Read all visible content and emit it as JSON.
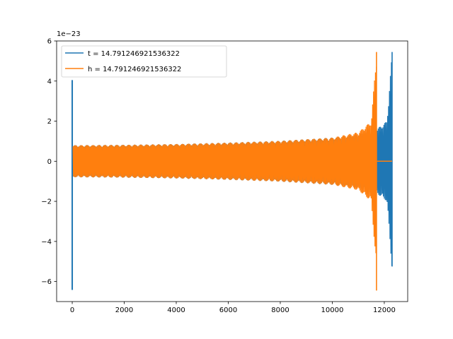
{
  "chart_data": {
    "type": "line",
    "offset_label": "1e−23",
    "x_ticks": [
      0,
      2000,
      4000,
      6000,
      8000,
      10000,
      12000
    ],
    "x_tick_labels": [
      "0",
      "2000",
      "4000",
      "6000",
      "8000",
      "10000",
      "12000"
    ],
    "y_ticks": [
      -6,
      -4,
      -2,
      0,
      2,
      4,
      6
    ],
    "y_tick_labels": [
      "−6",
      "−4",
      "−2",
      "0",
      "2",
      "4",
      "6"
    ],
    "xlim": [
      -600,
      12900
    ],
    "ylim": [
      -7,
      6
    ],
    "legend_position": "top-left",
    "series": [
      {
        "name": "t = 14.791246921536322",
        "color": "#1f77b4",
        "start_spike": {
          "x": 0,
          "max": 4.05,
          "min": -6.42
        },
        "envelope": [
          [
            30,
            0.8
          ],
          [
            2000,
            0.82
          ],
          [
            4000,
            0.86
          ],
          [
            6000,
            0.93
          ],
          [
            8000,
            1.02
          ],
          [
            10000,
            1.18
          ],
          [
            11000,
            1.33
          ],
          [
            11700,
            1.6
          ],
          [
            12100,
            2.0
          ],
          [
            12300,
            5.45
          ]
        ],
        "end_spike": {
          "x": 12300,
          "max": 5.45,
          "min": -5.25
        },
        "x_end": 12300
      },
      {
        "name": "h = 14.791246921536322",
        "color": "#ff7f0e",
        "envelope": [
          [
            30,
            0.8
          ],
          [
            2000,
            0.82
          ],
          [
            4000,
            0.86
          ],
          [
            6000,
            0.93
          ],
          [
            8000,
            1.02
          ],
          [
            10000,
            1.18
          ],
          [
            11000,
            1.45
          ],
          [
            11500,
            2.0
          ],
          [
            11700,
            5.45
          ]
        ],
        "end_spike": {
          "x": 11700,
          "max": 5.45,
          "min": -6.45
        },
        "flat_after": {
          "x_start": 11720,
          "x_end": 12300,
          "value": 0
        }
      }
    ]
  }
}
